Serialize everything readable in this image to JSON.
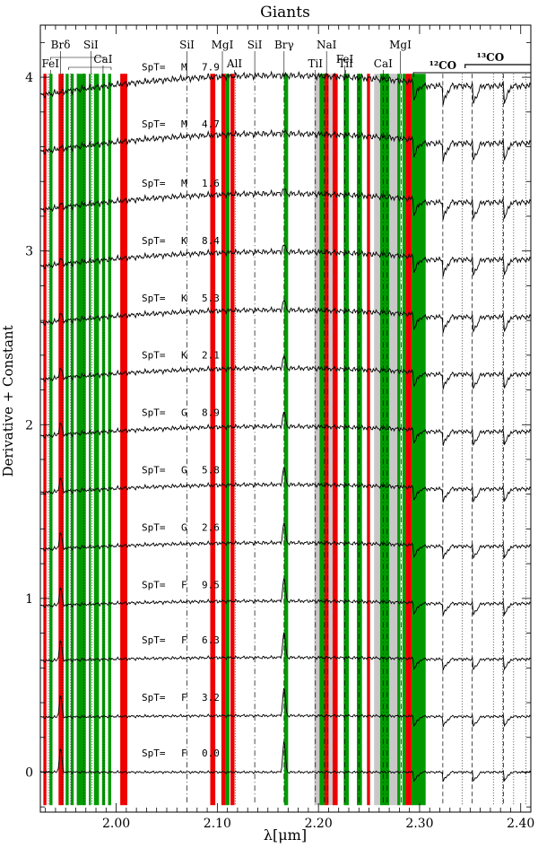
{
  "chart_data": {
    "type": "line",
    "title": "Giants",
    "xlabel": "λ[μm]",
    "ylabel": "Derivative + Constant",
    "xlim": [
      1.925,
      2.41
    ],
    "ylim": [
      -0.23,
      4.3
    ],
    "x_ticks": [
      {
        "value": 2.0,
        "label": "2.00"
      },
      {
        "value": 2.1,
        "label": "2.10"
      },
      {
        "value": 2.2,
        "label": "2.20"
      },
      {
        "value": 2.3,
        "label": "2.30"
      },
      {
        "value": 2.4,
        "label": "2.40"
      }
    ],
    "y_ticks": [
      {
        "value": 0,
        "label": "0"
      },
      {
        "value": 1,
        "label": "1"
      },
      {
        "value": 2,
        "label": "2"
      },
      {
        "value": 3,
        "label": "3"
      },
      {
        "value": 4,
        "label": "4"
      }
    ],
    "series": [
      {
        "spt_prefix": "SpT=",
        "class": "M",
        "subtype": "7.9",
        "offset": 3.95
      },
      {
        "spt_prefix": "SpT=",
        "class": "M",
        "subtype": "4.7",
        "offset": 3.62
      },
      {
        "spt_prefix": "SpT=",
        "class": "M",
        "subtype": "1.6",
        "offset": 3.28
      },
      {
        "spt_prefix": "SpT=",
        "class": "K",
        "subtype": "8.4",
        "offset": 2.95
      },
      {
        "spt_prefix": "SpT=",
        "class": "K",
        "subtype": "5.3",
        "offset": 2.62
      },
      {
        "spt_prefix": "SpT=",
        "class": "K",
        "subtype": "2.1",
        "offset": 2.29
      },
      {
        "spt_prefix": "SpT=",
        "class": "G",
        "subtype": "8.9",
        "offset": 1.96
      },
      {
        "spt_prefix": "SpT=",
        "class": "G",
        "subtype": "5.8",
        "offset": 1.63
      },
      {
        "spt_prefix": "SpT=",
        "class": "G",
        "subtype": "2.6",
        "offset": 1.3
      },
      {
        "spt_prefix": "SpT=",
        "class": "F",
        "subtype": "9.5",
        "offset": 0.97
      },
      {
        "spt_prefix": "SpT=",
        "class": "F",
        "subtype": "6.3",
        "offset": 0.65
      },
      {
        "spt_prefix": "SpT=",
        "class": "F",
        "subtype": "3.2",
        "offset": 0.32
      },
      {
        "spt_prefix": "SpT=",
        "class": "F",
        "subtype": "0.0",
        "offset": 0.0
      }
    ],
    "red_bands": [
      [
        1.928,
        1.931
      ],
      [
        1.943,
        1.948
      ],
      [
        2.004,
        2.011
      ],
      [
        2.093,
        2.098
      ],
      [
        2.104,
        2.108
      ],
      [
        2.113,
        2.117
      ],
      [
        2.206,
        2.21
      ],
      [
        2.214,
        2.219
      ],
      [
        2.248,
        2.251
      ],
      [
        2.286,
        2.292
      ]
    ],
    "green_bands": [
      [
        1.934,
        1.937
      ],
      [
        1.95,
        1.953
      ],
      [
        1.955,
        1.958
      ],
      [
        1.961,
        1.97
      ],
      [
        1.973,
        1.975
      ],
      [
        1.978,
        1.983
      ],
      [
        1.986,
        1.989
      ],
      [
        1.992,
        1.995
      ],
      [
        2.108,
        2.112
      ],
      [
        2.166,
        2.17
      ],
      [
        2.201,
        2.206
      ],
      [
        2.225,
        2.23
      ],
      [
        2.238,
        2.243
      ],
      [
        2.261,
        2.27
      ],
      [
        2.278,
        2.281
      ],
      [
        2.283,
        2.286
      ],
      [
        2.292,
        2.306
      ]
    ],
    "gray_bands": [
      [
        2.196,
        2.201
      ],
      [
        2.21,
        2.214
      ],
      [
        2.255,
        2.261
      ],
      [
        2.27,
        2.278
      ]
    ],
    "line_labels": [
      {
        "text": "FeI",
        "x": 1.935,
        "row": 3
      },
      {
        "text": "Brδ",
        "x": 1.945,
        "row": 1
      },
      {
        "text": "SiI",
        "x": 1.975,
        "row": 1
      },
      {
        "text": "CaI",
        "x": 1.987,
        "row": 2
      },
      {
        "text": "SiI",
        "x": 2.07,
        "row": 1
      },
      {
        "text": "MgI",
        "x": 2.105,
        "row": 1
      },
      {
        "text": "AlI",
        "x": 2.117,
        "row": 3
      },
      {
        "text": "SiI",
        "x": 2.137,
        "row": 1
      },
      {
        "text": "Brγ",
        "x": 2.166,
        "row": 1
      },
      {
        "text": "NaI",
        "x": 2.208,
        "row": 1
      },
      {
        "text": "TiI",
        "x": 2.197,
        "row": 3
      },
      {
        "text": "FeI",
        "x": 2.226,
        "row": 2
      },
      {
        "text": "TiI",
        "x": 2.227,
        "row": 3
      },
      {
        "text": "CaI",
        "x": 2.264,
        "row": 3
      },
      {
        "text": "MgI",
        "x": 2.281,
        "row": 1
      }
    ],
    "co12_label": "¹²CO",
    "co13_label": "¹³CO",
    "dashdot_lines": [
      2.07,
      2.137,
      2.166,
      2.197,
      2.206,
      2.209,
      2.226,
      2.24,
      2.264,
      2.268,
      2.282
    ],
    "dotted_lines": [
      1.933,
      1.947,
      1.955,
      1.968,
      1.976,
      1.988,
      2.118,
      2.342,
      2.373,
      2.382,
      2.393,
      2.405
    ],
    "dash_lines": [
      2.323,
      2.352,
      2.383,
      2.414
    ],
    "grid": false,
    "legend": "none"
  }
}
